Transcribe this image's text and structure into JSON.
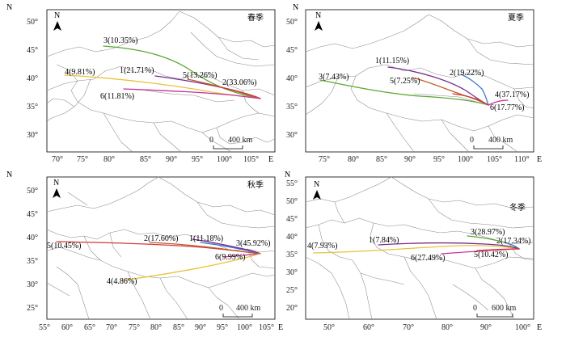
{
  "axis_letters": {
    "north": "N",
    "east": "E"
  },
  "panels": [
    {
      "season": "春季",
      "y_ticks": [
        "50°",
        "45°",
        "40°",
        "35°",
        "30°"
      ],
      "x_ticks": [
        "70°",
        "75°",
        "80°",
        "85°",
        "90°",
        "95°",
        "100°",
        "105°"
      ],
      "scale_label": "400 km",
      "routes": [
        {
          "label": "3(10.35%)",
          "color": "#5aa832"
        },
        {
          "label": "1(21.71%)",
          "color": "#7b2d8e"
        },
        {
          "label": "5(13.26%)",
          "color": "#c45a28"
        },
        {
          "label": "2(33.06%)",
          "color": "#d23a3a"
        },
        {
          "label": "4(9.81%)",
          "color": "#e8c23a"
        },
        {
          "label": "6(11.81%)",
          "color": "#c8329a"
        }
      ]
    },
    {
      "season": "夏季",
      "y_ticks": [
        "50°",
        "45°",
        "40°",
        "35°",
        "30°"
      ],
      "x_ticks": [
        "75°",
        "80°",
        "85°",
        "90°",
        "95°",
        "100°",
        "105°",
        "110°"
      ],
      "scale_label": "400 km",
      "routes": [
        {
          "label": "1(11.15%)",
          "color": "#7b2d8e"
        },
        {
          "label": "3(7.43%)",
          "color": "#5aa832"
        },
        {
          "label": "5(7.25%)",
          "color": "#c45a28"
        },
        {
          "label": "2(19.22%)",
          "color": "#3a7ad2"
        },
        {
          "label": "4(37.17%)",
          "color": "#d23a3a"
        },
        {
          "label": "6(17.77%)",
          "color": "#c8329a"
        }
      ]
    },
    {
      "season": "秋季",
      "y_ticks": [
        "50°",
        "45°",
        "40°",
        "35°",
        "30°",
        "25°"
      ],
      "x_ticks": [
        "55°",
        "60°",
        "65°",
        "70°",
        "75°",
        "80°",
        "85°",
        "90°",
        "95°",
        "100°",
        "105°"
      ],
      "scale_label": "400 km",
      "routes": [
        {
          "label": "5(10.45%)",
          "color": "#d23a3a"
        },
        {
          "label": "2(17.60%)",
          "color": "#c45a28"
        },
        {
          "label": "1(11.18%)",
          "color": "#3a7ad2"
        },
        {
          "label": "3(45.92%)",
          "color": "#7b2d8e"
        },
        {
          "label": "6(9.99%)",
          "color": "#c8329a"
        },
        {
          "label": "4(4.86%)",
          "color": "#e8c23a"
        }
      ]
    },
    {
      "season": "冬季",
      "y_ticks": [
        "55°",
        "50°",
        "45°",
        "40°",
        "35°",
        "30°",
        "25°",
        "20°"
      ],
      "x_ticks": [
        "50°",
        "60°",
        "70°",
        "80°",
        "90°",
        "100°"
      ],
      "scale_label": "600 km",
      "routes": [
        {
          "label": "4(7.93%)",
          "color": "#e8c23a"
        },
        {
          "label": "1(7.84%)",
          "color": "#7b2d8e"
        },
        {
          "label": "3(28.97%)",
          "color": "#5aa832"
        },
        {
          "label": "2(17.34%)",
          "color": "#3a7ad2"
        },
        {
          "label": "6(27.49%)",
          "color": "#c8329a"
        },
        {
          "label": "5(10.42%)",
          "color": "#d23a3a"
        }
      ]
    }
  ]
}
